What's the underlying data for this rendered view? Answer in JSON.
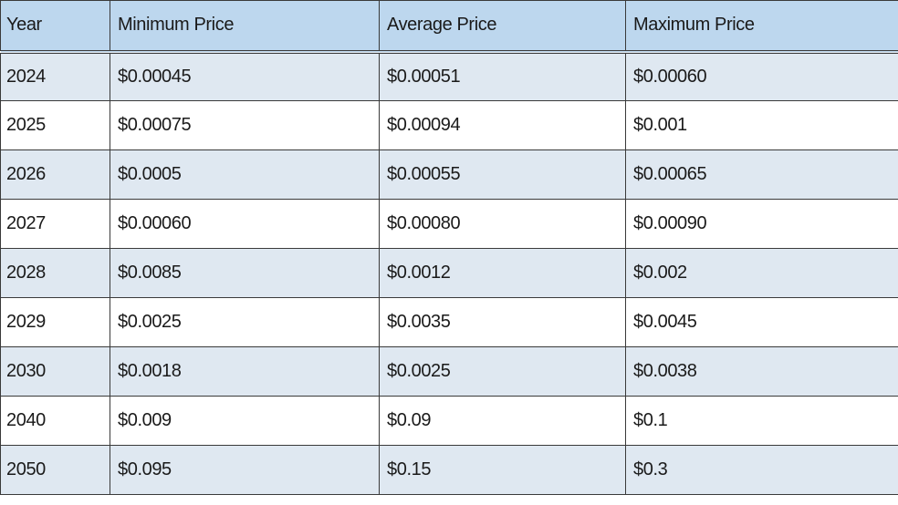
{
  "table": {
    "headers": [
      "Year",
      "Minimum Price",
      "Average Price",
      "Maximum Price"
    ],
    "rows": [
      [
        "2024",
        "$0.00045",
        "$0.00051",
        "$0.00060"
      ],
      [
        "2025",
        "$0.00075",
        "$0.00094",
        "$0.001"
      ],
      [
        "2026",
        "$0.0005",
        "$0.00055",
        "$0.00065"
      ],
      [
        "2027",
        "$0.00060",
        "$0.00080",
        "$0.00090"
      ],
      [
        "2028",
        "$0.0085",
        "$0.0012",
        "$0.002"
      ],
      [
        "2029",
        "$0.0025",
        "$0.0035",
        "$0.0045"
      ],
      [
        "2030",
        "$0.0018",
        "$0.0025",
        "$0.0038"
      ],
      [
        "2040",
        "$0.009",
        "$0.09",
        "$0.1"
      ],
      [
        "2050",
        "$0.095",
        "$0.15",
        "$0.3"
      ]
    ],
    "colors": {
      "header_bg": "#bdd7ee",
      "stripe_bg": "#dfe8f1",
      "row_bg": "#ffffff",
      "border": "#3a3a3a"
    }
  }
}
